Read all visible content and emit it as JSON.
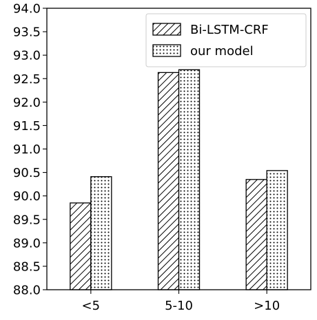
{
  "chart_data": {
    "type": "bar",
    "title": "",
    "xlabel": "",
    "ylabel": "",
    "categories": [
      "<5",
      "5-10",
      ">10"
    ],
    "series": [
      {
        "name": "Bi-LSTM-CRF",
        "pattern": "hatch",
        "values": [
          89.85,
          92.63,
          90.35
        ]
      },
      {
        "name": "our model",
        "pattern": "dots",
        "values": [
          90.41,
          92.69,
          90.54
        ]
      }
    ],
    "ylim": [
      88.0,
      94.0
    ],
    "yticks": [
      "88.0",
      "88.5",
      "89.0",
      "89.5",
      "90.0",
      "90.5",
      "91.0",
      "91.5",
      "92.0",
      "92.5",
      "93.0",
      "93.5",
      "94.0"
    ],
    "grid": false,
    "legend_position": "top-right",
    "colors": {
      "bar_fill": "#ffffff",
      "edge": "#000000"
    }
  }
}
